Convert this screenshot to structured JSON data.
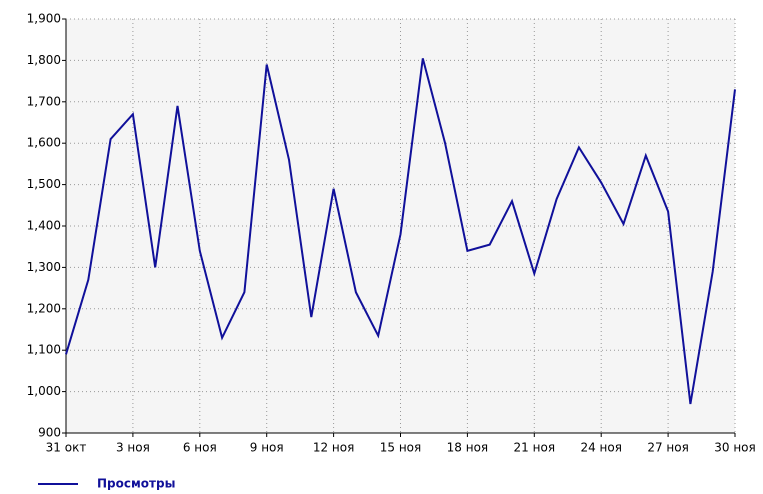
{
  "chart_data": {
    "type": "line",
    "categories": [
      "31 окт",
      null,
      null,
      "3 ноя",
      null,
      null,
      "6 ноя",
      null,
      null,
      "9 ноя",
      null,
      null,
      "12 ноя",
      null,
      null,
      "15 ноя",
      null,
      null,
      "18 ноя",
      null,
      null,
      "21 ноя",
      null,
      null,
      "24 ноя",
      null,
      null,
      "27 ноя",
      null,
      null,
      "30 ноя"
    ],
    "series": [
      {
        "name": "Просмотры",
        "color": "#10109a",
        "values": [
          1090,
          1270,
          1610,
          1670,
          1300,
          1690,
          1340,
          1130,
          1240,
          1790,
          1560,
          1180,
          1490,
          1240,
          1135,
          1380,
          1805,
          1600,
          1340,
          1355,
          1460,
          1285,
          1465,
          1590,
          1505,
          1405,
          1570,
          1435,
          970,
          1290,
          1730
        ]
      }
    ],
    "ylim": [
      900,
      1900
    ],
    "yticks": [
      900,
      {
        "value": 1000,
        "label": "1,000"
      },
      {
        "value": 1100,
        "label": "1,100"
      },
      {
        "value": 1200,
        "label": "1,200"
      },
      {
        "value": 1300,
        "label": "1,300"
      },
      {
        "value": 1400,
        "label": "1,400"
      },
      {
        "value": 1500,
        "label": "1,500"
      },
      {
        "value": 1600,
        "label": "1,600"
      },
      {
        "value": 1700,
        "label": "1,700"
      },
      {
        "value": 1800,
        "label": "1,800"
      },
      {
        "value": 1900,
        "label": "1,900"
      }
    ],
    "grid": true
  }
}
